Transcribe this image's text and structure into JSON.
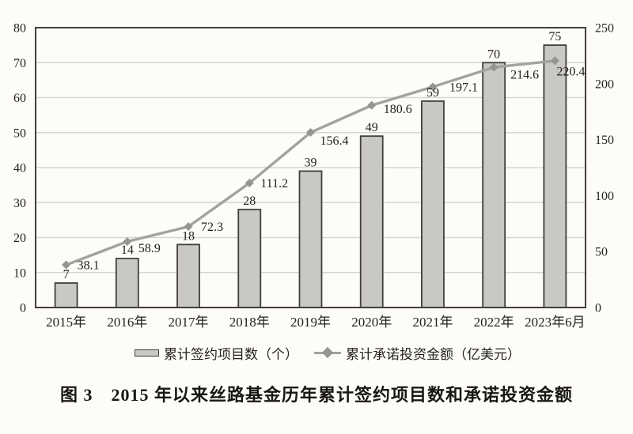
{
  "figure": {
    "title": "图 3　2015 年以来丝路基金历年累计签约项目数和承诺投资金额"
  },
  "legend": {
    "bar_label": "累计签约项目数（个）",
    "line_label": "累计承诺投资金额（亿美元）"
  },
  "chart_data": {
    "type": "bar+line combo",
    "categories": [
      "2015年",
      "2016年",
      "2017年",
      "2018年",
      "2019年",
      "2020年",
      "2021年",
      "2022年",
      "2023年6月"
    ],
    "series": [
      {
        "name": "累计签约项目数（个）",
        "type": "bar",
        "axis": "left",
        "values": [
          7,
          14,
          18,
          28,
          39,
          49,
          59,
          70,
          75
        ]
      },
      {
        "name": "累计承诺投资金额（亿美元）",
        "type": "line",
        "axis": "right",
        "values": [
          38.1,
          58.9,
          72.3,
          111.2,
          156.4,
          180.6,
          197.1,
          214.6,
          220.4
        ]
      }
    ],
    "left_axis": {
      "min": 0,
      "max": 80,
      "ticks": [
        0,
        10,
        20,
        30,
        40,
        50,
        60,
        70,
        80
      ]
    },
    "right_axis": {
      "min": 0,
      "max": 250,
      "ticks": [
        0,
        50,
        100,
        150,
        200,
        250
      ]
    },
    "grid": "horizontal, follows left axis every 10",
    "legend_position": "bottom",
    "colors": {
      "background": "#fdfcf9",
      "bar_fill": "#c9c8c5",
      "bar_stroke": "#413f3c",
      "line": "#a3a29e",
      "marker": "#95948f",
      "grid": "#d7d6d2",
      "frame": "#413f3c",
      "text": "#26231f"
    }
  }
}
